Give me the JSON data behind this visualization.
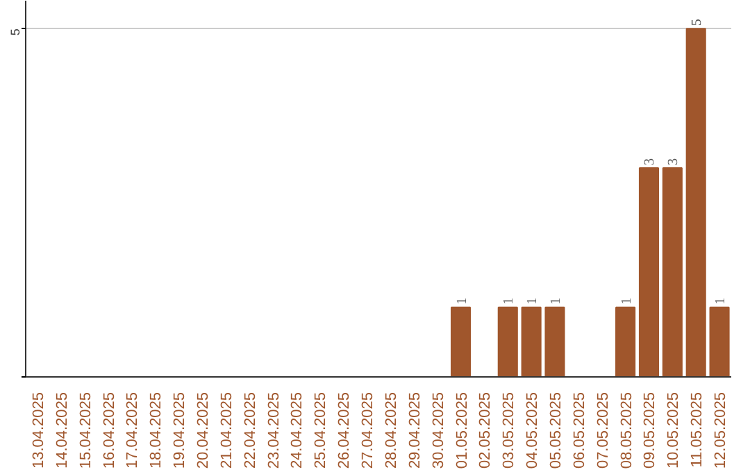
{
  "chart_data": {
    "type": "bar",
    "categories": [
      "13.04.2025",
      "14.04.2025",
      "15.04.2025",
      "16.04.2025",
      "17.04.2025",
      "18.04.2025",
      "19.04.2025",
      "20.04.2025",
      "21.04.2025",
      "22.04.2025",
      "23.04.2025",
      "24.04.2025",
      "25.04.2025",
      "26.04.2025",
      "27.04.2025",
      "28.04.2025",
      "29.04.2025",
      "30.04.2025",
      "01.05.2025",
      "02.05.2025",
      "03.05.2025",
      "04.05.2025",
      "05.05.2025",
      "06.05.2025",
      "07.05.2025",
      "08.05.2025",
      "09.05.2025",
      "10.05.2025",
      "11.05.2025",
      "12.05.2025"
    ],
    "values": [
      null,
      null,
      null,
      null,
      null,
      null,
      null,
      null,
      null,
      null,
      null,
      null,
      null,
      null,
      null,
      null,
      null,
      null,
      1,
      null,
      1,
      1,
      1,
      null,
      null,
      1,
      3,
      3,
      5,
      1
    ],
    "color": "#a0562c",
    "ylim": [
      0,
      5.4
    ],
    "yticks": [
      {
        "value": 0,
        "label": null
      },
      5
    ],
    "grid": "y",
    "data_labels": true
  }
}
